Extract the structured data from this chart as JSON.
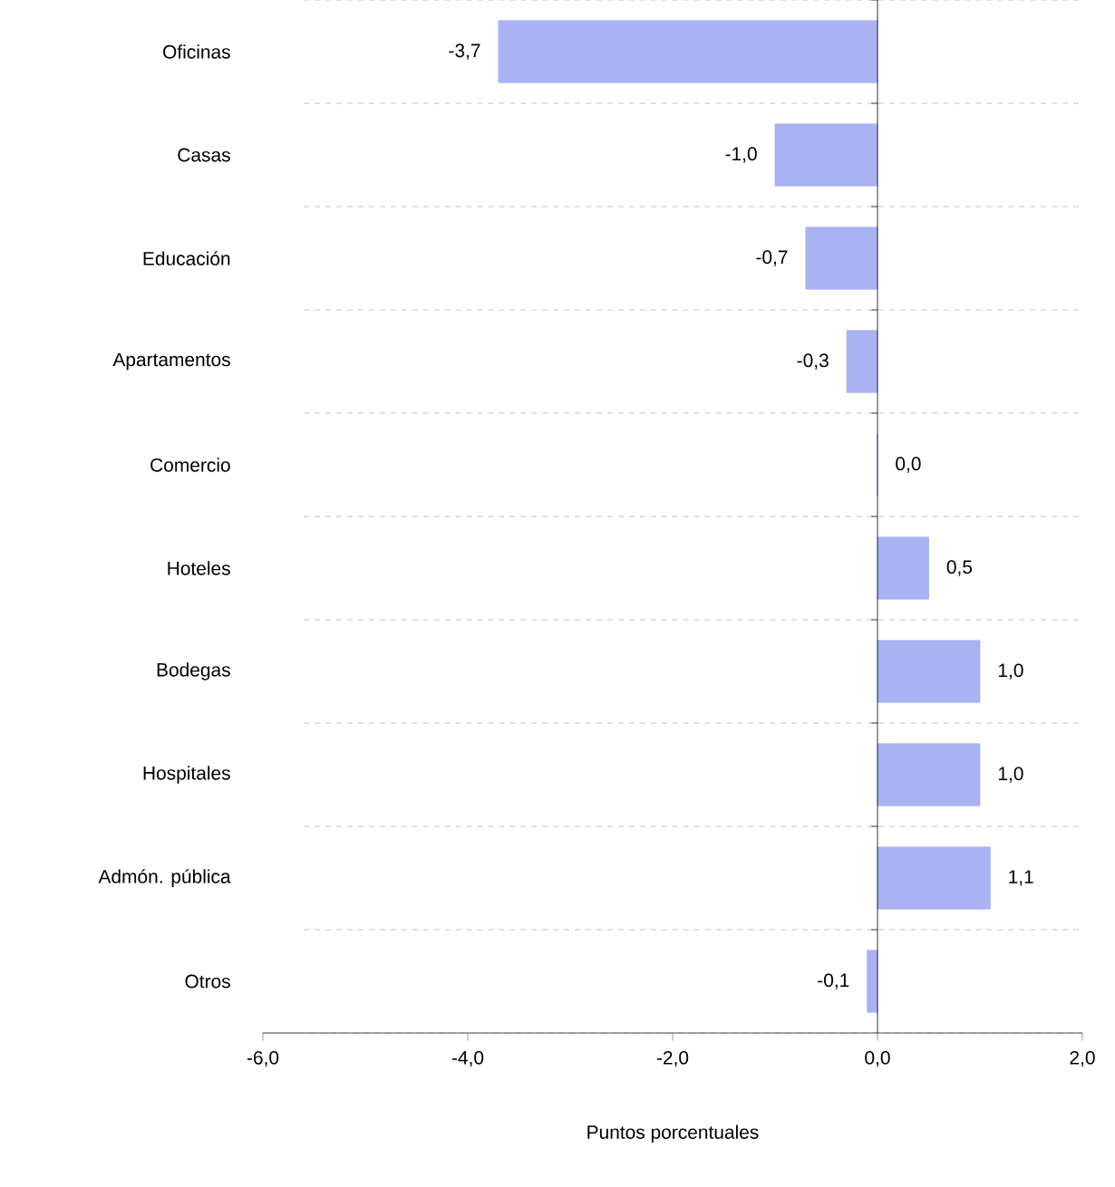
{
  "chart_data": {
    "type": "bar",
    "orientation": "horizontal",
    "xlabel": "Puntos porcentuales",
    "categories": [
      "Oficinas",
      "Casas",
      "Educación",
      "Apartamentos",
      "Comercio",
      "Hoteles",
      "Bodegas",
      "Hospitales",
      "Admón. pública",
      "Otros"
    ],
    "values": [
      -3.7,
      -1.0,
      -0.7,
      -0.3,
      0.0,
      0.5,
      1.0,
      1.0,
      1.1,
      -0.1
    ],
    "value_labels": [
      "-3,7",
      "-1,0",
      "-0,7",
      "-0,3",
      "0,0",
      "0,5",
      "1,0",
      "1,0",
      "1,1",
      "-0,1"
    ],
    "color": "#a9b3f2",
    "xlim": [
      -6,
      2
    ],
    "xticks": [
      {
        "value": -6,
        "label": "-6,0"
      },
      {
        "value": -4,
        "label": "-4,0"
      },
      {
        "value": -2,
        "label": "-2,0"
      },
      {
        "value": 0,
        "label": "0,0"
      },
      {
        "value": 2,
        "label": "2,0"
      }
    ],
    "grid": "y"
  }
}
